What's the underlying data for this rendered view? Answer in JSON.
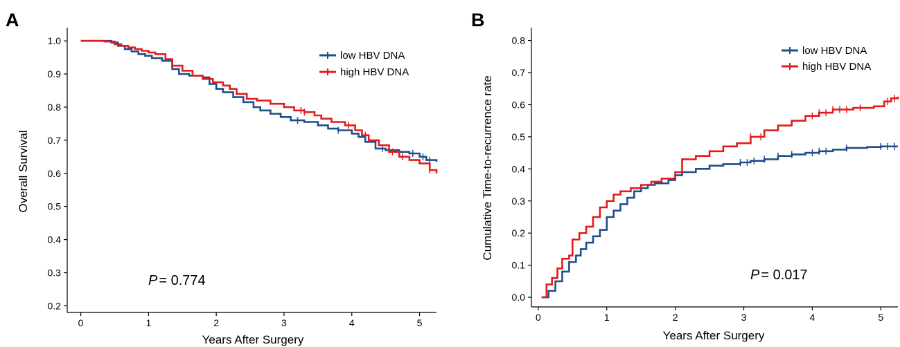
{
  "colors": {
    "low": "#1f4e8c",
    "high": "#e41a1c",
    "axis": "#000000"
  },
  "chart_data": [
    {
      "type": "line",
      "panel": "A",
      "title": "",
      "xlabel": "Years After Surgery",
      "ylabel": "Overall Survival",
      "xlim": [
        -0.2,
        5.25
      ],
      "ylim": [
        0.18,
        1.04
      ],
      "xticks": [
        0,
        1,
        2,
        3,
        4,
        5
      ],
      "xtick_labels": [
        "0",
        "1",
        "2",
        "3",
        "4",
        "5"
      ],
      "yticks": [
        0.2,
        0.3,
        0.4,
        0.5,
        0.6,
        0.7,
        0.8,
        0.9,
        1.0
      ],
      "ytick_labels": [
        "0.2",
        "0.3",
        "0.4",
        "0.5",
        "0.6",
        "0.7",
        "0.8",
        "0.9",
        "1.0"
      ],
      "legend_position": "top-right",
      "annotation": {
        "p_symbol": "P",
        "p_text": "= 0.774"
      },
      "series": [
        {
          "name": "low HBV DNA",
          "color_key": "low",
          "x": [
            0,
            0.45,
            0.55,
            0.65,
            0.75,
            0.85,
            0.95,
            1.05,
            1.2,
            1.35,
            1.45,
            1.6,
            1.8,
            1.9,
            2.0,
            2.1,
            2.25,
            2.4,
            2.55,
            2.65,
            2.8,
            2.95,
            3.1,
            3.3,
            3.5,
            3.65,
            3.8,
            4.0,
            4.1,
            4.2,
            4.35,
            4.5,
            4.7,
            4.85,
            5.0,
            5.1,
            5.25
          ],
          "y": [
            1.0,
            0.995,
            0.985,
            0.975,
            0.968,
            0.96,
            0.955,
            0.948,
            0.94,
            0.915,
            0.9,
            0.895,
            0.89,
            0.87,
            0.855,
            0.845,
            0.83,
            0.815,
            0.8,
            0.79,
            0.78,
            0.77,
            0.76,
            0.755,
            0.745,
            0.735,
            0.73,
            0.72,
            0.71,
            0.695,
            0.675,
            0.67,
            0.665,
            0.66,
            0.65,
            0.64,
            0.635
          ],
          "censor_x": [
            3.2,
            3.8,
            4.45,
            4.9,
            5.05,
            5.15
          ]
        },
        {
          "name": "high HBV DNA",
          "color_key": "high",
          "x": [
            0,
            0.35,
            0.5,
            0.6,
            0.7,
            0.8,
            0.9,
            1.0,
            1.1,
            1.25,
            1.35,
            1.5,
            1.65,
            1.8,
            1.95,
            2.1,
            2.2,
            2.3,
            2.45,
            2.6,
            2.8,
            3.0,
            3.15,
            3.3,
            3.45,
            3.55,
            3.7,
            3.9,
            4.05,
            4.15,
            4.25,
            4.4,
            4.55,
            4.7,
            4.85,
            5.0,
            5.15,
            5.25
          ],
          "y": [
            1.0,
            0.998,
            0.99,
            0.985,
            0.98,
            0.975,
            0.97,
            0.965,
            0.96,
            0.945,
            0.925,
            0.91,
            0.895,
            0.885,
            0.875,
            0.865,
            0.855,
            0.84,
            0.825,
            0.82,
            0.81,
            0.8,
            0.79,
            0.785,
            0.775,
            0.765,
            0.755,
            0.745,
            0.73,
            0.715,
            0.7,
            0.685,
            0.665,
            0.65,
            0.64,
            0.63,
            0.61,
            0.6
          ],
          "censor_x": [
            3.25,
            3.3,
            3.95,
            4.2,
            4.6,
            4.75,
            5.15
          ]
        }
      ]
    },
    {
      "type": "line",
      "panel": "B",
      "title": "",
      "xlabel": "Years After Surgery",
      "ylabel": "Cumulative Time-to-recurrence rate",
      "xlim": [
        -0.1,
        5.25
      ],
      "ylim": [
        -0.03,
        0.84
      ],
      "xticks": [
        0,
        1,
        2,
        3,
        4,
        5
      ],
      "xtick_labels": [
        "0",
        "1",
        "2",
        "3",
        "4",
        "5"
      ],
      "yticks": [
        0.0,
        0.1,
        0.2,
        0.3,
        0.4,
        0.5,
        0.6,
        0.7,
        0.8
      ],
      "ytick_labels": [
        "0.0",
        "0.1",
        "0.2",
        "0.3",
        "0.4",
        "0.5",
        "0.6",
        "0.7",
        "0.8"
      ],
      "legend_position": "top-right",
      "annotation": {
        "p_symbol": "P",
        "p_text": "= 0.017"
      },
      "series": [
        {
          "name": "low HBV DNA",
          "color_key": "low",
          "x": [
            0.05,
            0.15,
            0.25,
            0.35,
            0.45,
            0.55,
            0.62,
            0.7,
            0.8,
            0.9,
            1.0,
            1.1,
            1.2,
            1.3,
            1.4,
            1.5,
            1.6,
            1.7,
            1.9,
            2.0,
            2.1,
            2.3,
            2.5,
            2.7,
            2.95,
            3.1,
            3.3,
            3.5,
            3.7,
            3.9,
            4.1,
            4.3,
            4.5,
            4.8,
            5.0,
            5.25
          ],
          "y": [
            0.0,
            0.02,
            0.05,
            0.08,
            0.11,
            0.13,
            0.15,
            0.17,
            0.19,
            0.21,
            0.25,
            0.27,
            0.29,
            0.31,
            0.33,
            0.34,
            0.35,
            0.355,
            0.365,
            0.38,
            0.39,
            0.4,
            0.41,
            0.415,
            0.42,
            0.425,
            0.43,
            0.44,
            0.445,
            0.45,
            0.455,
            0.46,
            0.465,
            0.468,
            0.47,
            0.47
          ],
          "censor_x": [
            2.95,
            3.05,
            3.15,
            3.3,
            3.5,
            3.7,
            4.0,
            4.1,
            4.2,
            4.5,
            5.0,
            5.1,
            5.2
          ]
        },
        {
          "name": "high HBV DNA",
          "color_key": "high",
          "x": [
            0.05,
            0.12,
            0.2,
            0.28,
            0.35,
            0.45,
            0.5,
            0.6,
            0.7,
            0.8,
            0.9,
            1.0,
            1.1,
            1.2,
            1.35,
            1.5,
            1.65,
            1.8,
            2.0,
            2.1,
            2.3,
            2.5,
            2.7,
            2.9,
            3.1,
            3.3,
            3.5,
            3.7,
            3.9,
            4.1,
            4.3,
            4.6,
            4.9,
            5.05,
            5.15,
            5.25
          ],
          "y": [
            0.0,
            0.04,
            0.06,
            0.09,
            0.12,
            0.13,
            0.18,
            0.2,
            0.22,
            0.25,
            0.28,
            0.3,
            0.32,
            0.33,
            0.34,
            0.35,
            0.36,
            0.37,
            0.39,
            0.43,
            0.44,
            0.455,
            0.47,
            0.48,
            0.5,
            0.52,
            0.535,
            0.55,
            0.565,
            0.575,
            0.585,
            0.59,
            0.595,
            0.61,
            0.62,
            0.625
          ],
          "censor_x": [
            3.1,
            3.25,
            4.0,
            4.1,
            4.2,
            4.3,
            4.4,
            4.5,
            4.7,
            5.1,
            5.2
          ]
        }
      ]
    }
  ]
}
